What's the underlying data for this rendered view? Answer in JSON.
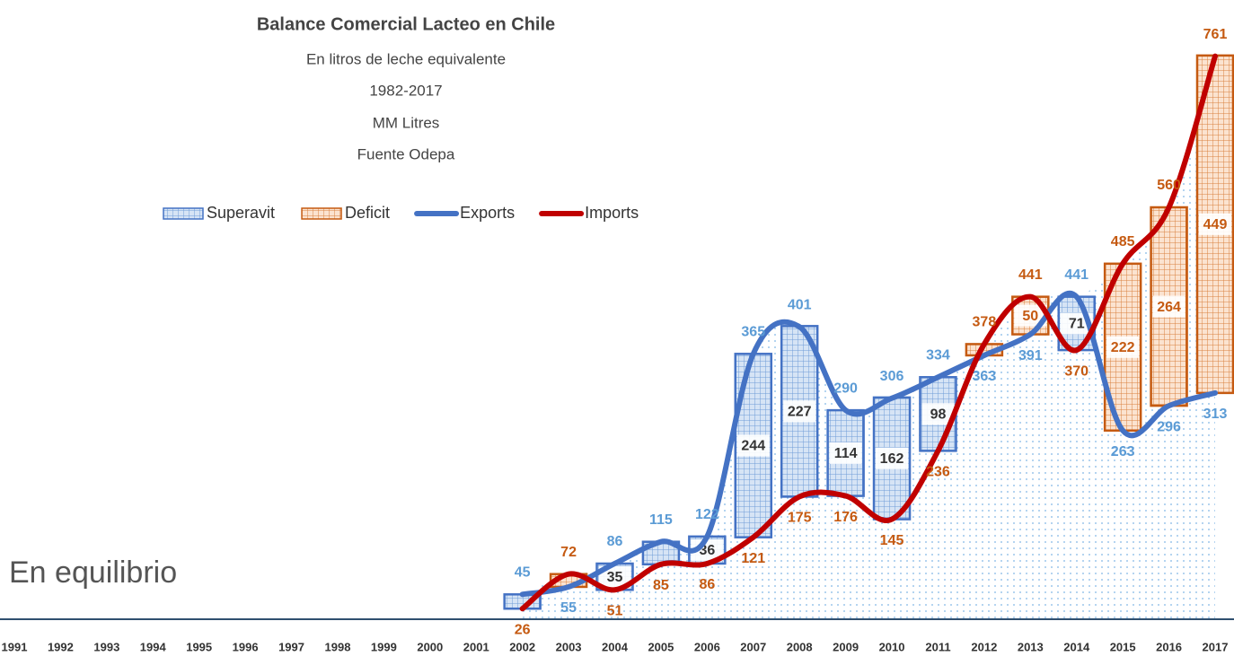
{
  "chart_data": {
    "type": "combo",
    "title": "Balance Comercial Lacteo en Chile",
    "subtitle": [
      "En litros de leche equivalente",
      "1982-2017",
      "MM Litres",
      "Fuente Odepa"
    ],
    "annotation": "En equilibrio",
    "categories": [
      "1991",
      "1992",
      "1993",
      "1994",
      "1995",
      "1996",
      "1997",
      "1998",
      "1999",
      "2000",
      "2001",
      "2002",
      "2003",
      "2004",
      "2005",
      "2006",
      "2007",
      "2008",
      "2009",
      "2010",
      "2011",
      "2012",
      "2013",
      "2014",
      "2015",
      "2016",
      "2017"
    ],
    "ylim": [
      0,
      800
    ],
    "legend": "top",
    "series": [
      {
        "name": "Superavit",
        "type": "bar",
        "color": "#4472c4",
        "label_color": "#333333",
        "values": [
          null,
          null,
          null,
          null,
          null,
          null,
          null,
          null,
          null,
          null,
          null,
          19,
          null,
          35,
          30,
          36,
          244,
          227,
          114,
          162,
          98,
          null,
          null,
          71,
          null,
          null,
          null
        ]
      },
      {
        "name": "Deficit",
        "type": "bar",
        "color": "#c55a11",
        "label_color": "#c55a11",
        "values": [
          null,
          null,
          null,
          null,
          null,
          null,
          null,
          null,
          null,
          null,
          null,
          null,
          17,
          null,
          null,
          null,
          null,
          null,
          null,
          null,
          null,
          15,
          50,
          null,
          222,
          264,
          449
        ]
      },
      {
        "name": "Exports",
        "type": "line",
        "color": "#4472c4",
        "label_color": "#5b9bd5",
        "values": [
          null,
          null,
          null,
          null,
          null,
          null,
          null,
          null,
          null,
          null,
          null,
          45,
          55,
          86,
          115,
          122,
          365,
          401,
          290,
          306,
          334,
          363,
          391,
          441,
          263,
          296,
          313
        ]
      },
      {
        "name": "Imports",
        "type": "line",
        "color": "#c00000",
        "label_color": "#c55a11",
        "values": [
          null,
          null,
          null,
          null,
          null,
          null,
          null,
          null,
          null,
          null,
          null,
          26,
          72,
          51,
          85,
          86,
          121,
          175,
          176,
          145,
          236,
          378,
          441,
          370,
          485,
          560,
          761
        ]
      }
    ]
  }
}
